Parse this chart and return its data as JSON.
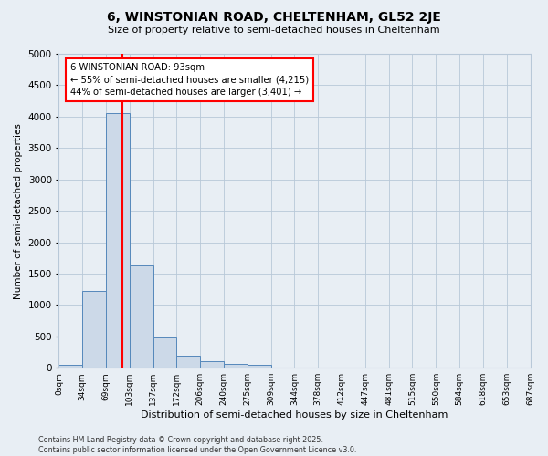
{
  "title": "6, WINSTONIAN ROAD, CHELTENHAM, GL52 2JE",
  "subtitle": "Size of property relative to semi-detached houses in Cheltenham",
  "xlabel": "Distribution of semi-detached houses by size in Cheltenham",
  "ylabel": "Number of semi-detached properties",
  "bar_values": [
    40,
    1230,
    4050,
    1630,
    480,
    190,
    105,
    65,
    50,
    0,
    0,
    0,
    0,
    0,
    0,
    0,
    0,
    0,
    0,
    0
  ],
  "bin_labels": [
    "0sqm",
    "34sqm",
    "69sqm",
    "103sqm",
    "137sqm",
    "172sqm",
    "206sqm",
    "240sqm",
    "275sqm",
    "309sqm",
    "344sqm",
    "378sqm",
    "412sqm",
    "447sqm",
    "481sqm",
    "515sqm",
    "550sqm",
    "584sqm",
    "618sqm",
    "653sqm",
    "687sqm"
  ],
  "bar_color": "#ccd9e8",
  "bar_edge_color": "#5588bb",
  "ylim": [
    0,
    5000
  ],
  "yticks": [
    0,
    500,
    1000,
    1500,
    2000,
    2500,
    3000,
    3500,
    4000,
    4500,
    5000
  ],
  "red_line_x": 2.7,
  "annotation_text": "6 WINSTONIAN ROAD: 93sqm\n← 55% of semi-detached houses are smaller (4,215)\n44% of semi-detached houses are larger (3,401) →",
  "footer": "Contains HM Land Registry data © Crown copyright and database right 2025.\nContains public sector information licensed under the Open Government Licence v3.0.",
  "plot_bg_color": "#e8eef4",
  "grid_color": "#b8c8d8",
  "fig_bg_color": "#e8eef4"
}
